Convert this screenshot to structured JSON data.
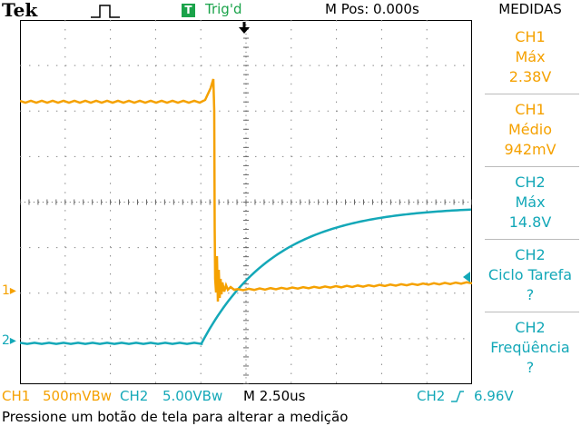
{
  "header": {
    "brand": "Tek",
    "run_icon": "pulse-icon",
    "trigger_badge": "T",
    "trigger_status": "Trig'd",
    "m_pos": "M Pos: 0.000s",
    "panel_title": "MEDIDAS"
  },
  "measurements": [
    {
      "channel": "CH1",
      "label": "Máx",
      "value": "2.38V",
      "color": "#f5a100"
    },
    {
      "channel": "CH1",
      "label": "Médio",
      "value": "942mV",
      "color": "#f5a100"
    },
    {
      "channel": "CH2",
      "label": "Máx",
      "value": "14.8V",
      "color": "#14a8b8"
    },
    {
      "channel": "CH2",
      "label": "Ciclo Tarefa",
      "value": "?",
      "color": "#14a8b8"
    },
    {
      "channel": "CH2",
      "label": "Freqüência",
      "value": "?",
      "color": "#14a8b8"
    }
  ],
  "markers": {
    "ch1": "1",
    "ch2": "2"
  },
  "bottom": {
    "ch1_label": "CH1",
    "ch1_scale": "500mVBw",
    "ch2_label": "CH2",
    "ch2_scale": "5.00VBw",
    "timebase": "M 2.50us",
    "trigger_source": "CH2",
    "trigger_level": "6.96V"
  },
  "status_message": "Pressione um botão de tela para alterar a medição",
  "colors": {
    "ch1": "#f5a100",
    "ch2": "#14a8b8",
    "trigger": "#1aa34a"
  }
}
